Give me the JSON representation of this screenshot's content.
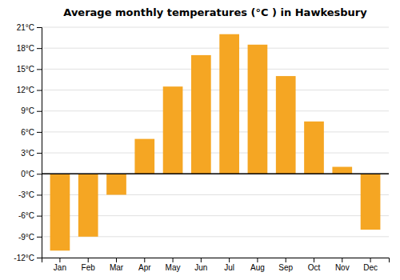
{
  "chart_data": {
    "type": "bar",
    "title": "Average monthly temperatures (°C ) in Hawkesbury",
    "categories": [
      "Jan",
      "Feb",
      "Mar",
      "Apr",
      "May",
      "Jun",
      "Jul",
      "Aug",
      "Sep",
      "Oct",
      "Nov",
      "Dec"
    ],
    "values": [
      -11,
      -9,
      -3,
      5,
      12.5,
      17,
      20,
      18.5,
      14,
      7.5,
      1,
      -8
    ],
    "color": "#F5A623",
    "ylim": [
      -12,
      21
    ],
    "yticks": [
      {
        "value": -12,
        "label": "-12°C"
      },
      {
        "value": -9,
        "label": "-9°C"
      },
      {
        "value": -6,
        "label": "-6°C"
      },
      {
        "value": -3,
        "label": "-3°C"
      },
      {
        "value": 0,
        "label": "0°C"
      },
      {
        "value": 3,
        "label": "3°C"
      },
      {
        "value": 6,
        "label": "6°C"
      },
      {
        "value": 9,
        "label": "9°C"
      },
      {
        "value": 12,
        "label": "12°C"
      },
      {
        "value": 15,
        "label": "15°C"
      },
      {
        "value": 18,
        "label": "18°C"
      },
      {
        "value": 21,
        "label": "21°C"
      }
    ],
    "grid": true
  }
}
